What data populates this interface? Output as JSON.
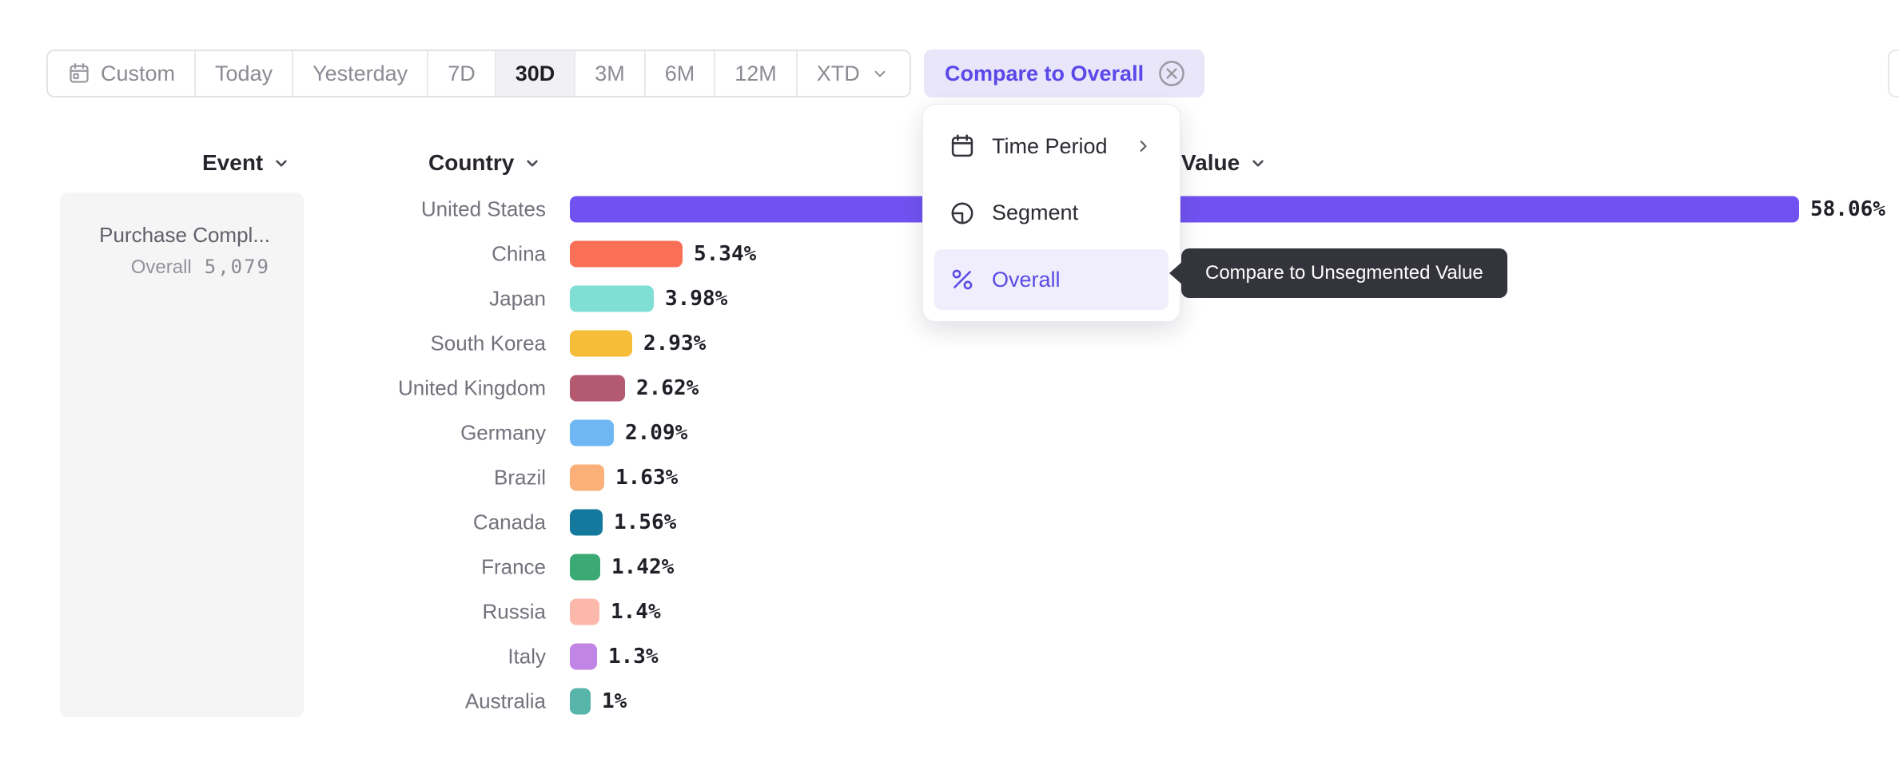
{
  "toolbar": {
    "buttons": [
      {
        "label": "Custom",
        "icon": "calendar-icon",
        "selected": false
      },
      {
        "label": "Today",
        "selected": false
      },
      {
        "label": "Yesterday",
        "selected": false
      },
      {
        "label": "7D",
        "selected": false
      },
      {
        "label": "30D",
        "selected": true
      },
      {
        "label": "3M",
        "selected": false
      },
      {
        "label": "6M",
        "selected": false
      },
      {
        "label": "12M",
        "selected": false
      },
      {
        "label": "XTD",
        "chevron": true,
        "selected": false
      }
    ]
  },
  "compare_chip": {
    "label": "Compare to Overall",
    "close_icon": "x-circle-icon"
  },
  "columns": {
    "event": "Event",
    "country": "Country",
    "value": "Value"
  },
  "event_panel": {
    "event_name": "Purchase Compl...",
    "overall_label": "Overall",
    "overall_value": "5,079"
  },
  "menu": {
    "items": [
      {
        "label": "Time Period",
        "icon": "calendar-icon",
        "has_submenu": true,
        "selected": false
      },
      {
        "label": "Segment",
        "icon": "segment-icon",
        "has_submenu": false,
        "selected": false
      },
      {
        "label": "Overall",
        "icon": "percent-icon",
        "has_submenu": false,
        "selected": true
      }
    ]
  },
  "tooltip": {
    "text": "Compare to Unsegmented Value"
  },
  "chart_data": {
    "type": "bar",
    "orientation": "horizontal",
    "title": "",
    "xlabel": "Value",
    "ylabel": "Country",
    "xlim": [
      0,
      60
    ],
    "grid": false,
    "categories": [
      "United States",
      "China",
      "Japan",
      "South Korea",
      "United Kingdom",
      "Germany",
      "Brazil",
      "Canada",
      "France",
      "Russia",
      "Italy",
      "Australia"
    ],
    "values": [
      58.06,
      5.34,
      3.98,
      2.93,
      2.62,
      2.09,
      1.63,
      1.56,
      1.42,
      1.4,
      1.3,
      1.0
    ],
    "value_labels": [
      "58.06%",
      "5.34%",
      "3.98%",
      "2.93%",
      "2.62%",
      "2.09%",
      "1.63%",
      "1.56%",
      "1.42%",
      "1.4%",
      "1.3%",
      "1%"
    ],
    "colors": [
      "#7152f1",
      "#fa7056",
      "#7fdfd4",
      "#f5bd38",
      "#b35a70",
      "#6fb7f2",
      "#fbaf79",
      "#15799e",
      "#3caa74",
      "#fcb9ab",
      "#c185e6",
      "#57b5a9"
    ]
  },
  "ui_colors": {
    "accent_purple": "#5b48e8",
    "chip_bg": "#e9e6fa",
    "menu_highlight_bg": "#f0edfc",
    "tooltip_bg": "#34343d",
    "selected_range_bg": "#f1f1f3",
    "panel_bg": "#f5f5f6",
    "muted_text": "#8b8b93"
  }
}
